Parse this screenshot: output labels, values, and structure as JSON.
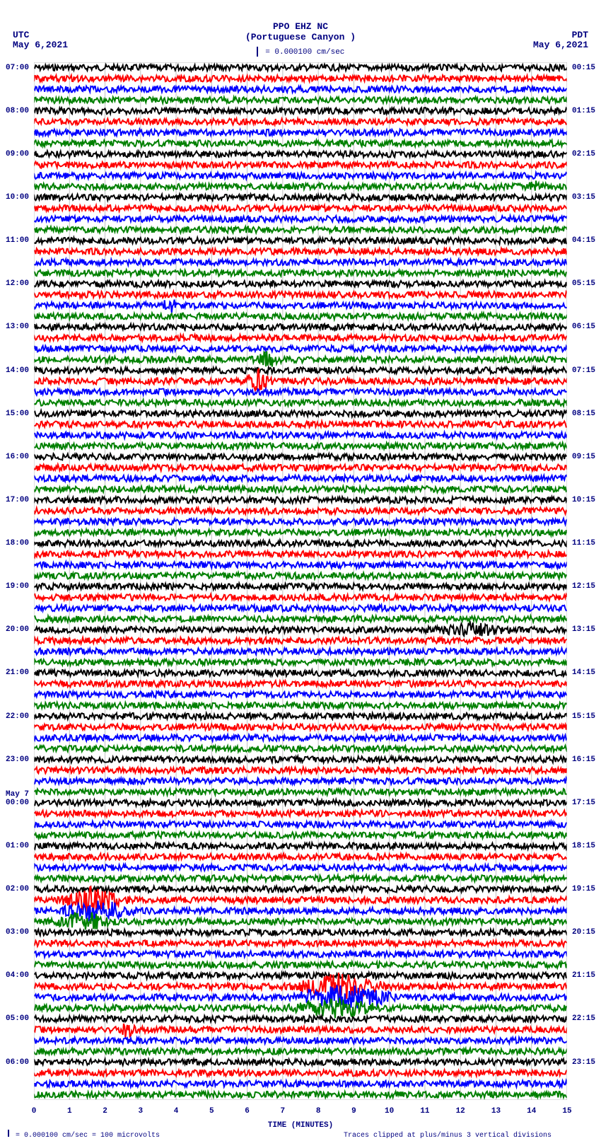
{
  "header": {
    "station": "PPO EHZ NC",
    "location": "(Portuguese Canyon )",
    "scale_text": "= 0.000100 cm/sec"
  },
  "tz_left": "UTC",
  "date_left": "May 6,2021",
  "tz_right": "PDT",
  "date_right": "May 6,2021",
  "plot": {
    "type": "helicorder_seismogram",
    "background_color": "#ffffff",
    "grid_color": "#c0c0c0",
    "axis_color": "#000080",
    "trace_colors": [
      "#000000",
      "#ff0000",
      "#0000ff",
      "#008000"
    ],
    "n_traces": 96,
    "trace_amplitude_base": 4.5,
    "x_minutes": [
      0,
      1,
      2,
      3,
      4,
      5,
      6,
      7,
      8,
      9,
      10,
      11,
      12,
      13,
      14,
      15
    ],
    "x_label": "TIME (MINUTES)",
    "left_labels": [
      {
        "i": 0,
        "t": "07:00"
      },
      {
        "i": 4,
        "t": "08:00"
      },
      {
        "i": 8,
        "t": "09:00"
      },
      {
        "i": 12,
        "t": "10:00"
      },
      {
        "i": 16,
        "t": "11:00"
      },
      {
        "i": 20,
        "t": "12:00"
      },
      {
        "i": 24,
        "t": "13:00"
      },
      {
        "i": 28,
        "t": "14:00"
      },
      {
        "i": 32,
        "t": "15:00"
      },
      {
        "i": 36,
        "t": "16:00"
      },
      {
        "i": 40,
        "t": "17:00"
      },
      {
        "i": 44,
        "t": "18:00"
      },
      {
        "i": 48,
        "t": "19:00"
      },
      {
        "i": 52,
        "t": "20:00"
      },
      {
        "i": 56,
        "t": "21:00"
      },
      {
        "i": 60,
        "t": "22:00"
      },
      {
        "i": 64,
        "t": "23:00"
      },
      {
        "i": 68,
        "t": "May 7"
      },
      {
        "i": 68,
        "t2": "00:00"
      },
      {
        "i": 72,
        "t": "01:00"
      },
      {
        "i": 76,
        "t": "02:00"
      },
      {
        "i": 80,
        "t": "03:00"
      },
      {
        "i": 84,
        "t": "04:00"
      },
      {
        "i": 88,
        "t": "05:00"
      },
      {
        "i": 92,
        "t": "06:00"
      }
    ],
    "right_labels": [
      {
        "i": 0,
        "t": "00:15"
      },
      {
        "i": 4,
        "t": "01:15"
      },
      {
        "i": 8,
        "t": "02:15"
      },
      {
        "i": 12,
        "t": "03:15"
      },
      {
        "i": 16,
        "t": "04:15"
      },
      {
        "i": 20,
        "t": "05:15"
      },
      {
        "i": 24,
        "t": "06:15"
      },
      {
        "i": 28,
        "t": "07:15"
      },
      {
        "i": 32,
        "t": "08:15"
      },
      {
        "i": 36,
        "t": "09:15"
      },
      {
        "i": 40,
        "t": "10:15"
      },
      {
        "i": 44,
        "t": "11:15"
      },
      {
        "i": 48,
        "t": "12:15"
      },
      {
        "i": 52,
        "t": "13:15"
      },
      {
        "i": 56,
        "t": "14:15"
      },
      {
        "i": 60,
        "t": "15:15"
      },
      {
        "i": 64,
        "t": "16:15"
      },
      {
        "i": 68,
        "t": "17:15"
      },
      {
        "i": 72,
        "t": "18:15"
      },
      {
        "i": 76,
        "t": "19:15"
      },
      {
        "i": 80,
        "t": "20:15"
      },
      {
        "i": 84,
        "t": "21:15"
      },
      {
        "i": 88,
        "t": "22:15"
      },
      {
        "i": 92,
        "t": "23:15"
      }
    ],
    "events": [
      {
        "trace": 27,
        "start": 0.4,
        "end": 0.48,
        "amp": 3.2
      },
      {
        "trace": 29,
        "start": 0.38,
        "end": 0.46,
        "amp": 4.0
      },
      {
        "trace": 22,
        "start": 0.23,
        "end": 0.28,
        "amp": 3.0
      },
      {
        "trace": 52,
        "start": 0.7,
        "end": 0.95,
        "amp": 2.5
      },
      {
        "trace": 77,
        "start": 0.02,
        "end": 0.2,
        "amp": 4.5
      },
      {
        "trace": 78,
        "start": 0.02,
        "end": 0.22,
        "amp": 4.0
      },
      {
        "trace": 79,
        "start": 0.01,
        "end": 0.18,
        "amp": 3.5
      },
      {
        "trace": 85,
        "start": 0.45,
        "end": 0.7,
        "amp": 4.5
      },
      {
        "trace": 86,
        "start": 0.44,
        "end": 0.72,
        "amp": 4.5
      },
      {
        "trace": 87,
        "start": 0.43,
        "end": 0.7,
        "amp": 3.5
      },
      {
        "trace": 11,
        "start": 0.9,
        "end": 0.97,
        "amp": 2.5
      },
      {
        "trace": 89,
        "start": 0.15,
        "end": 0.2,
        "amp": 3.0
      }
    ]
  },
  "footer": {
    "left": "= 0.000100 cm/sec =    100 microvolts",
    "right": "Traces clipped at plus/minus 3 vertical divisions"
  }
}
